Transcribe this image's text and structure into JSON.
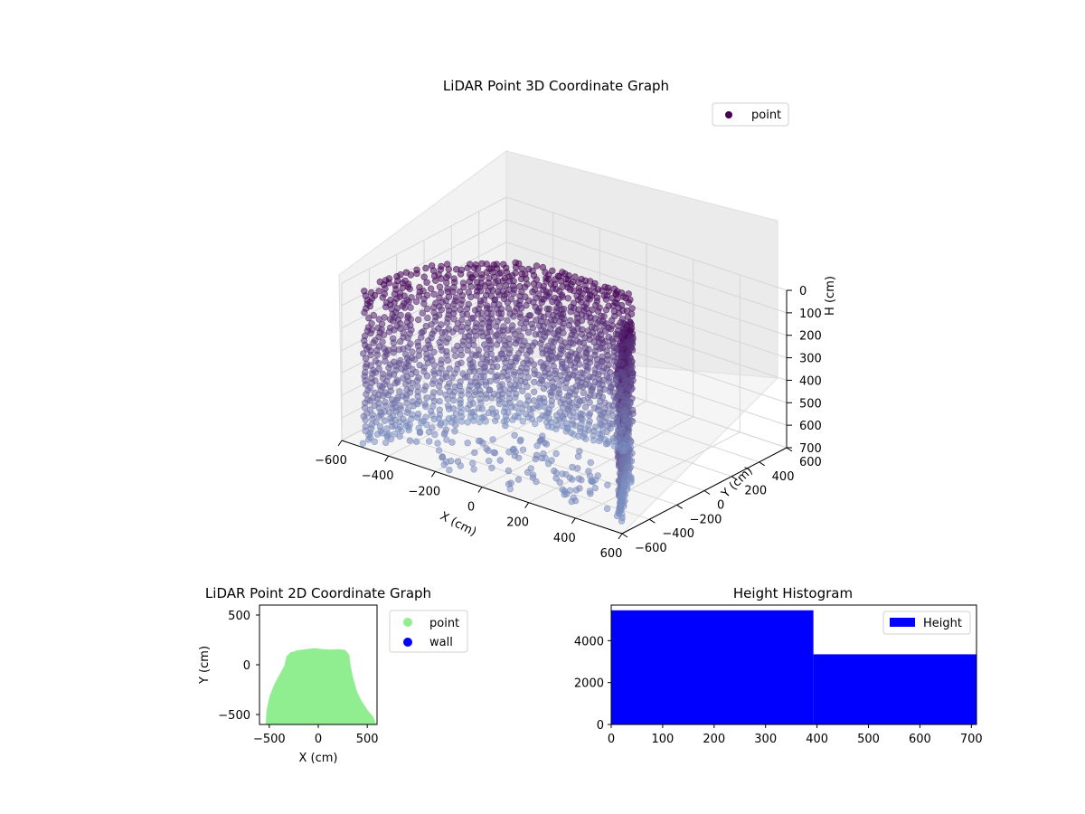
{
  "colors": {
    "point3d_top": "#440154",
    "point3d_bottom": "#7b8fc0",
    "point2d": "#90ee90",
    "wall": "#0000ff",
    "hist": "#0000ff",
    "pane": "#f2f2f2",
    "grid": "#d6d6d6"
  },
  "chart_data": [
    {
      "type": "scatter",
      "projection": "3d",
      "title": "LiDAR Point 3D Coordinate Graph",
      "xlabel": "X (cm)",
      "ylabel": "Y (cm)",
      "zlabel": "H (cm)",
      "xlim": [
        -600,
        600
      ],
      "ylim": [
        -600,
        600
      ],
      "zlim": [
        0,
        700
      ],
      "zaxis_inverted": true,
      "x_ticks": [
        "-600",
        "-400",
        "-200",
        "0",
        "200",
        "400",
        "600"
      ],
      "y_ticks": [
        "-600",
        "-400",
        "-200",
        "0",
        "200",
        "400",
        "600"
      ],
      "z_ticks": [
        "0",
        "100",
        "200",
        "300",
        "400",
        "500",
        "600",
        "700"
      ],
      "legend": [
        "point"
      ],
      "legend_position": "top-right",
      "grid": true,
      "series": [
        {
          "name": "point",
          "description": "wall points: (x, y) outline with heights sampled 0-700",
          "outline_xy": [
            [
              -520,
              -560
            ],
            [
              -500,
              -420
            ],
            [
              -480,
              -300
            ],
            [
              -430,
              -170
            ],
            [
              -360,
              -80
            ],
            [
              -300,
              -10
            ],
            [
              -250,
              60
            ],
            [
              -160,
              100
            ],
            [
              -80,
              110
            ],
            [
              0,
              112
            ],
            [
              80,
              118
            ],
            [
              160,
              120
            ],
            [
              240,
              118
            ],
            [
              300,
              100
            ],
            [
              330,
              60
            ],
            [
              340,
              -40
            ],
            [
              360,
              -140
            ],
            [
              390,
              -230
            ],
            [
              440,
              -320
            ],
            [
              490,
              -420
            ],
            [
              540,
              -520
            ]
          ],
          "height_range": [
            0,
            700
          ],
          "floor_points_xy": [
            [
              -420,
              -480
            ],
            [
              -300,
              -380
            ],
            [
              -150,
              -300
            ],
            [
              0,
              -250
            ],
            [
              150,
              -320
            ],
            [
              260,
              -420
            ],
            [
              380,
              -500
            ],
            [
              -200,
              -520
            ],
            [
              100,
              -540
            ],
            [
              -50,
              -430
            ],
            [
              220,
              -220
            ],
            [
              -330,
              -250
            ],
            [
              40,
              -120
            ],
            [
              -120,
              -180
            ],
            [
              300,
              -300
            ]
          ]
        }
      ]
    },
    {
      "type": "scatter",
      "title": "LiDAR Point 2D Coordinate Graph",
      "xlabel": "X (cm)",
      "ylabel": "Y (cm)",
      "xlim": [
        -600,
        600
      ],
      "ylim": [
        -600,
        600
      ],
      "x_ticks": [
        "−500",
        "0",
        "500"
      ],
      "y_ticks": [
        "−500",
        "0",
        "500"
      ],
      "legend": [
        "point",
        "wall"
      ],
      "legend_position": "outside-right",
      "series": [
        {
          "name": "point",
          "outline": [
            [
              -510,
              -600
            ],
            [
              -500,
              -460
            ],
            [
              -470,
              -320
            ],
            [
              -420,
              -200
            ],
            [
              -370,
              -110
            ],
            [
              -320,
              -20
            ],
            [
              -300,
              70
            ],
            [
              -270,
              100
            ],
            [
              -200,
              120
            ],
            [
              -120,
              130
            ],
            [
              -40,
              140
            ],
            [
              40,
              130
            ],
            [
              120,
              125
            ],
            [
              200,
              130
            ],
            [
              260,
              125
            ],
            [
              290,
              90
            ],
            [
              300,
              0
            ],
            [
              330,
              -140
            ],
            [
              370,
              -280
            ],
            [
              420,
              -380
            ],
            [
              480,
              -470
            ],
            [
              540,
              -540
            ],
            [
              560,
              -600
            ]
          ]
        },
        {
          "name": "wall",
          "values": []
        }
      ]
    },
    {
      "type": "bar",
      "subtype": "histogram",
      "title": "Height Histogram",
      "xlim": [
        0,
        710
      ],
      "ylim": [
        0,
        5700
      ],
      "x_ticks": [
        "0",
        "100",
        "200",
        "300",
        "400",
        "500",
        "600",
        "700"
      ],
      "y_ticks": [
        "0",
        "2000",
        "4000"
      ],
      "legend": [
        "Height"
      ],
      "legend_position": "top-right",
      "bins": [
        {
          "x0": 0,
          "x1": 393,
          "count": 5450
        },
        {
          "x0": 393,
          "x1": 710,
          "count": 3350
        }
      ]
    }
  ]
}
